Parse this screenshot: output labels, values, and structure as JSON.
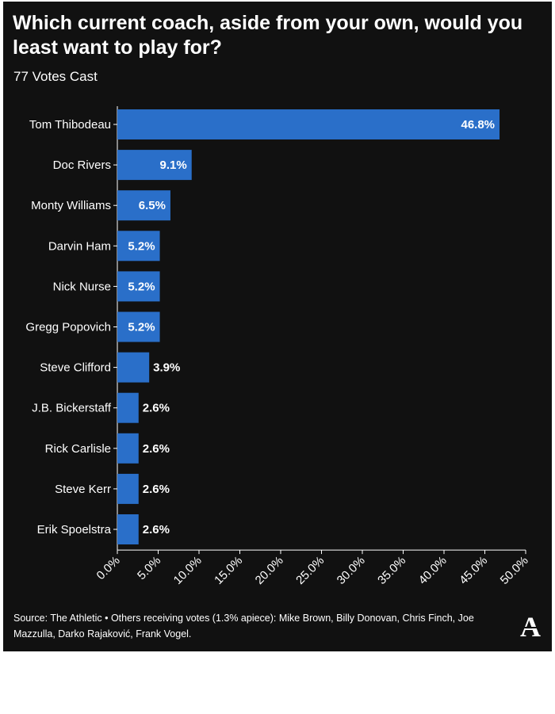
{
  "header": {
    "title": "Which current coach, aside from your own, would you least want to play for?",
    "subtitle": "77 Votes Cast"
  },
  "footer": {
    "source": "Source: The Athletic • Others receiving votes (1.3% apiece): Mike Brown, Billy Donovan, Chris Finch, Joe Mazzulla, Darko Rajaković, Frank Vogel."
  },
  "logo": {
    "letter": "A",
    "icon": "the-athletic-logo"
  },
  "colors": {
    "background": "#111111",
    "bar": "#2a6fc9",
    "text": "#ffffff",
    "axis": "#ffffff"
  },
  "chart_data": {
    "type": "bar",
    "orientation": "horizontal",
    "title": "Which current coach, aside from your own, would you least want to play for?",
    "subtitle": "77 Votes Cast",
    "categories": [
      "Tom Thibodeau",
      "Doc Rivers",
      "Monty Williams",
      "Darvin Ham",
      "Nick Nurse",
      "Gregg Popovich",
      "Steve Clifford",
      "J.B. Bickerstaff",
      "Rick Carlisle",
      "Steve Kerr",
      "Erik Spoelstra"
    ],
    "values": [
      46.8,
      9.1,
      6.5,
      5.2,
      5.2,
      5.2,
      3.9,
      2.6,
      2.6,
      2.6,
      2.6
    ],
    "value_labels": [
      "46.8%",
      "9.1%",
      "6.5%",
      "5.2%",
      "5.2%",
      "5.2%",
      "3.9%",
      "2.6%",
      "2.6%",
      "2.6%",
      "2.6%"
    ],
    "xlim": [
      0,
      50
    ],
    "xticks": [
      0,
      5,
      10,
      15,
      20,
      25,
      30,
      35,
      40,
      45,
      50
    ],
    "xtick_labels": [
      "0.0%",
      "5.0%",
      "10.0%",
      "15.0%",
      "20.0%",
      "25.0%",
      "30.0%",
      "35.0%",
      "40.0%",
      "45.0%",
      "50.0%"
    ],
    "xlabel": "",
    "ylabel": "",
    "grid": false
  }
}
